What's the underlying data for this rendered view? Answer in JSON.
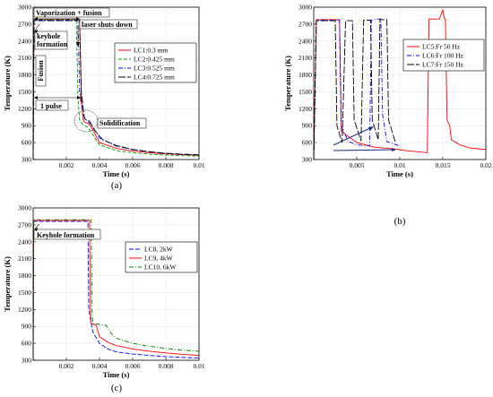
{
  "chart_data": [
    {
      "id": "a",
      "type": "line",
      "panel_label": "(a)",
      "xlabel": "Time (s)",
      "ylabel": "Temperature (K)",
      "xlim": [
        0,
        0.01
      ],
      "ylim": [
        300,
        3000
      ],
      "xticks": [
        0.002,
        0.004,
        0.006,
        0.008,
        0.01
      ],
      "xtick_labels": [
        "0.002",
        "0.004",
        "0.006",
        "0.008",
        "0.01"
      ],
      "yticks": [
        300,
        600,
        900,
        1200,
        1500,
        1800,
        2100,
        2400,
        2700,
        3000
      ],
      "grid": true,
      "legend_position": "right",
      "series": [
        {
          "name": "LC1:0.3 mm",
          "color": "#ff0000",
          "dash": "",
          "points": [
            [
              0,
              300
            ],
            [
              5e-05,
              2790
            ],
            [
              0.0028,
              2790
            ],
            [
              0.0029,
              1400
            ],
            [
              0.003,
              1020
            ],
            [
              0.0031,
              960
            ],
            [
              0.0033,
              940
            ],
            [
              0.0035,
              880
            ],
            [
              0.004,
              600
            ],
            [
              0.005,
              500
            ],
            [
              0.006,
              450
            ],
            [
              0.007,
              420
            ],
            [
              0.008,
              400
            ],
            [
              0.009,
              385
            ],
            [
              0.01,
              375
            ]
          ]
        },
        {
          "name": "LC2:0.425 mm",
          "color": "#00a000",
          "dash": "4,2",
          "points": [
            [
              0,
              300
            ],
            [
              5e-05,
              2780
            ],
            [
              0.0026,
              2780
            ],
            [
              0.0027,
              1400
            ],
            [
              0.0028,
              1000
            ],
            [
              0.003,
              920
            ],
            [
              0.0033,
              870
            ],
            [
              0.004,
              560
            ],
            [
              0.005,
              460
            ],
            [
              0.006,
              420
            ],
            [
              0.007,
              395
            ],
            [
              0.008,
              380
            ],
            [
              0.009,
              368
            ],
            [
              0.01,
              360
            ]
          ]
        },
        {
          "name": "LC3:0.525 mm",
          "color": "#0000ff",
          "dash": "5,2,1,2",
          "points": [
            [
              0,
              300
            ],
            [
              5e-05,
              2770
            ],
            [
              0.0027,
              2770
            ],
            [
              0.0028,
              1500
            ],
            [
              0.003,
              1100
            ],
            [
              0.0032,
              1000
            ],
            [
              0.0035,
              920
            ],
            [
              0.004,
              680
            ],
            [
              0.005,
              540
            ],
            [
              0.006,
              475
            ],
            [
              0.007,
              435
            ],
            [
              0.008,
              410
            ],
            [
              0.009,
              395
            ],
            [
              0.01,
              385
            ]
          ]
        },
        {
          "name": "LC4:0.725 mm",
          "color": "#000000",
          "dash": "8,2",
          "points": [
            [
              0,
              300
            ],
            [
              5e-05,
              2760
            ],
            [
              0.0028,
              2760
            ],
            [
              0.0029,
              1500
            ],
            [
              0.0031,
              1020
            ],
            [
              0.0034,
              980
            ],
            [
              0.0037,
              820
            ],
            [
              0.0042,
              650
            ],
            [
              0.005,
              550
            ],
            [
              0.006,
              480
            ],
            [
              0.007,
              440
            ],
            [
              0.008,
              410
            ],
            [
              0.009,
              392
            ],
            [
              0.01,
              380
            ]
          ]
        }
      ],
      "annotations": [
        "Vaporization + fusion",
        "laser shuts down",
        "keyhole formation",
        "Fusion",
        "1 pulse",
        "Solidification"
      ]
    },
    {
      "id": "b",
      "type": "line",
      "panel_label": "(b)",
      "xlabel": "Time (s)",
      "ylabel": "Temperature (K)",
      "xlim": [
        0,
        0.02
      ],
      "ylim": [
        300,
        3000
      ],
      "xticks": [
        0.005,
        0.01,
        0.015,
        0.02
      ],
      "xtick_labels": [
        "0.005",
        "0.01",
        "0.015",
        "0.02"
      ],
      "yticks": [
        300,
        600,
        900,
        1200,
        1500,
        1800,
        2100,
        2400,
        2700,
        3000
      ],
      "grid": true,
      "legend_position": "right",
      "series": [
        {
          "name": "LC5:Fr 50 Hz",
          "color": "#ff0000",
          "dash": "",
          "points": [
            [
              0,
              300
            ],
            [
              0.0003,
              2780
            ],
            [
              0.003,
              2780
            ],
            [
              0.0032,
              800
            ],
            [
              0.005,
              600
            ],
            [
              0.007,
              520
            ],
            [
              0.0099,
              480
            ],
            [
              0.01,
              470
            ],
            [
              0.0132,
              420
            ],
            [
              0.0134,
              2790
            ],
            [
              0.0146,
              2790
            ],
            [
              0.015,
              2950
            ],
            [
              0.0152,
              2790
            ],
            [
              0.0153,
              2790
            ],
            [
              0.0155,
              1000
            ],
            [
              0.0158,
              900
            ],
            [
              0.016,
              650
            ],
            [
              0.017,
              560
            ],
            [
              0.018,
              510
            ],
            [
              0.019,
              490
            ],
            [
              0.02,
              480
            ]
          ]
        },
        {
          "name": "LC6:Fr 100 Hz",
          "color": "#0000ff",
          "dash": "5,2,1,2",
          "points": [
            [
              0,
              300
            ],
            [
              0.0003,
              2770
            ],
            [
              0.003,
              2770
            ],
            [
              0.0032,
              900
            ],
            [
              0.004,
              620
            ],
            [
              0.005,
              560
            ],
            [
              0.0065,
              540
            ],
            [
              0.0067,
              2770
            ],
            [
              0.0075,
              2790
            ],
            [
              0.0078,
              2790
            ],
            [
              0.008,
              1100
            ],
            [
              0.0085,
              620
            ],
            [
              0.01,
              540
            ]
          ]
        },
        {
          "name": "LC7:Fr 150 Hz",
          "color": "#000000",
          "dash": "8,2",
          "points": [
            [
              0,
              300
            ],
            [
              0.0003,
              2760
            ],
            [
              0.0025,
              2760
            ],
            [
              0.0027,
              900
            ],
            [
              0.0033,
              600
            ],
            [
              0.0037,
              2760
            ],
            [
              0.0045,
              2760
            ],
            [
              0.0047,
              1000
            ],
            [
              0.0055,
              630
            ],
            [
              0.0058,
              2770
            ],
            [
              0.0066,
              2770
            ],
            [
              0.0068,
              1000
            ],
            [
              0.0075,
              650
            ],
            [
              0.0077,
              2780
            ],
            [
              0.0085,
              2780
            ],
            [
              0.0087,
              1000
            ],
            [
              0.0095,
              600
            ]
          ]
        }
      ]
    },
    {
      "id": "c",
      "type": "line",
      "panel_label": "(c)",
      "xlabel": "Time (s)",
      "ylabel": "Temperature (K)",
      "xlim": [
        0,
        0.01
      ],
      "ylim": [
        300,
        3000
      ],
      "xticks": [
        0.002,
        0.004,
        0.006,
        0.008,
        0.01
      ],
      "xtick_labels": [
        "0.002",
        "0.004",
        "0.006",
        "0.008",
        "0.01"
      ],
      "yticks": [
        300,
        600,
        900,
        1200,
        1500,
        1800,
        2100,
        2400,
        2700,
        3000
      ],
      "grid": true,
      "legend_position": "right",
      "series": [
        {
          "name": "LC8, 2kW",
          "color": "#0000ff",
          "dash": "5,2",
          "points": [
            [
              0,
              300
            ],
            [
              3e-05,
              2760
            ],
            [
              0.0033,
              2760
            ],
            [
              0.00335,
              1200
            ],
            [
              0.0036,
              800
            ],
            [
              0.004,
              600
            ],
            [
              0.0045,
              500
            ],
            [
              0.005,
              450
            ],
            [
              0.006,
              410
            ],
            [
              0.007,
              385
            ],
            [
              0.008,
              365
            ],
            [
              0.009,
              350
            ],
            [
              0.01,
              340
            ]
          ]
        },
        {
          "name": "LC9, 4kW",
          "color": "#ff0000",
          "dash": "",
          "points": [
            [
              0,
              300
            ],
            [
              3e-05,
              2780
            ],
            [
              0.0034,
              2780
            ],
            [
              0.00345,
              1200
            ],
            [
              0.0035,
              950
            ],
            [
              0.0038,
              920
            ],
            [
              0.004,
              720
            ],
            [
              0.0045,
              620
            ],
            [
              0.005,
              560
            ],
            [
              0.006,
              500
            ],
            [
              0.007,
              460
            ],
            [
              0.008,
              430
            ],
            [
              0.009,
              405
            ],
            [
              0.01,
              385
            ]
          ]
        },
        {
          "name": "LC10, 6kW",
          "color": "#008000",
          "dash": "5,2,1,2",
          "points": [
            [
              0,
              300
            ],
            [
              3e-05,
              2790
            ],
            [
              0.0035,
              2790
            ],
            [
              0.00355,
              1200
            ],
            [
              0.0036,
              950
            ],
            [
              0.0044,
              920
            ],
            [
              0.0047,
              780
            ],
            [
              0.005,
              690
            ],
            [
              0.006,
              600
            ],
            [
              0.007,
              550
            ],
            [
              0.008,
              510
            ],
            [
              0.009,
              480
            ],
            [
              0.01,
              460
            ]
          ]
        }
      ],
      "annotations": [
        "Keyhole formation"
      ]
    }
  ]
}
